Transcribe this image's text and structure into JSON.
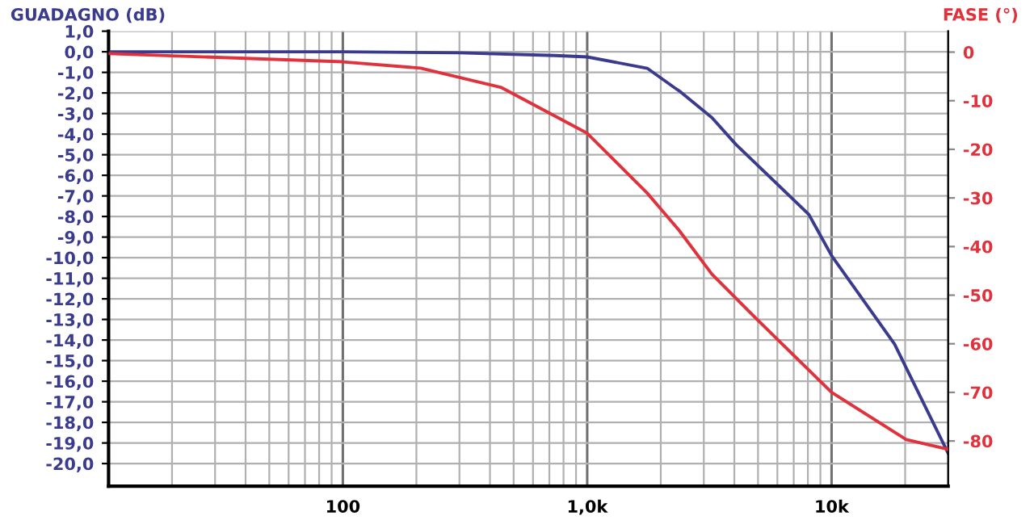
{
  "chart_data": {
    "type": "line",
    "ylabel": "GUADAGNO (dB)",
    "y2label": "FASE (°)",
    "log": "x",
    "grid": true,
    "marker": "none",
    "line_style": "solid",
    "xlim": [
      11,
      30000
    ],
    "xticks": [
      {
        "value": 20,
        "label": null
      },
      {
        "value": 30,
        "label": null
      },
      {
        "value": 40,
        "label": null
      },
      {
        "value": 50,
        "label": null
      },
      {
        "value": 60,
        "label": null
      },
      {
        "value": 70,
        "label": null
      },
      {
        "value": 80,
        "label": null
      },
      {
        "value": 90,
        "label": null
      },
      100,
      {
        "value": 200,
        "label": null
      },
      {
        "value": 300,
        "label": null
      },
      {
        "value": 400,
        "label": null
      },
      {
        "value": 500,
        "label": null
      },
      {
        "value": 600,
        "label": null
      },
      {
        "value": 700,
        "label": null
      },
      {
        "value": 800,
        "label": null
      },
      {
        "value": 900,
        "label": null
      },
      {
        "value": 1000,
        "label": "1,0k"
      },
      {
        "value": 2000,
        "label": null
      },
      {
        "value": 3000,
        "label": null
      },
      {
        "value": 4000,
        "label": null
      },
      {
        "value": 5000,
        "label": null
      },
      {
        "value": 6000,
        "label": null
      },
      {
        "value": 7000,
        "label": null
      },
      {
        "value": 8000,
        "label": null
      },
      {
        "value": 9000,
        "label": null
      },
      {
        "value": 10000,
        "label": "10k"
      },
      {
        "value": 20000,
        "label": null
      }
    ],
    "ylim": [
      -21.1,
      1
    ],
    "yticks": [
      {
        "value": 1,
        "label": "1,0"
      },
      {
        "value": 0,
        "label": "0,0"
      },
      {
        "value": -1,
        "label": "-1,0"
      },
      {
        "value": -2,
        "label": "-2,0"
      },
      {
        "value": -3,
        "label": "-3,0"
      },
      {
        "value": -4,
        "label": "-4,0"
      },
      {
        "value": -5,
        "label": "-5,0"
      },
      {
        "value": -6,
        "label": "-6,0"
      },
      {
        "value": -7,
        "label": "-7,0"
      },
      {
        "value": -8,
        "label": "-8,0"
      },
      {
        "value": -9,
        "label": "-9,0"
      },
      {
        "value": -10,
        "label": "-10,0"
      },
      {
        "value": -11,
        "label": "-11,0"
      },
      {
        "value": -12,
        "label": "-12,0"
      },
      {
        "value": -13,
        "label": "-13,0"
      },
      {
        "value": -14,
        "label": "-14,0"
      },
      {
        "value": -15,
        "label": "-15,0"
      },
      {
        "value": -16,
        "label": "-16,0"
      },
      {
        "value": -17,
        "label": "-17,0"
      },
      {
        "value": -18,
        "label": "-18,0"
      },
      {
        "value": -19,
        "label": "-19,0"
      },
      {
        "value": -20,
        "label": "-20,0"
      }
    ],
    "y2lim": [
      -89.3,
      4.3
    ],
    "y2ticks": [
      0,
      -10,
      -20,
      -30,
      -40,
      -50,
      -60,
      -70,
      -80
    ],
    "series": [
      {
        "color": "#3b3b8e",
        "x": [
          11,
          100,
          300,
          737,
          1000,
          1760,
          2280,
          2380,
          3240,
          4060,
          8070,
          10000,
          18100,
          30000
        ],
        "values": [
          0,
          0,
          -0.05,
          -0.18,
          -0.25,
          -0.8,
          -1.75,
          -1.9,
          -3.2,
          -4.5,
          -7.9,
          -9.9,
          -14.2,
          -19.5
        ]
      },
      {
        "color": "#e0323c",
        "axis": "y2",
        "x": [
          11,
          100,
          208,
          446,
          1000,
          1760,
          2380,
          3240,
          4890,
          10000,
          20200,
          30000
        ],
        "values": [
          -0.3,
          -2,
          -3.3,
          -7.3,
          -16.7,
          -29,
          -36.7,
          -45.7,
          -54.7,
          -70,
          -79.7,
          -81.7
        ]
      }
    ]
  }
}
